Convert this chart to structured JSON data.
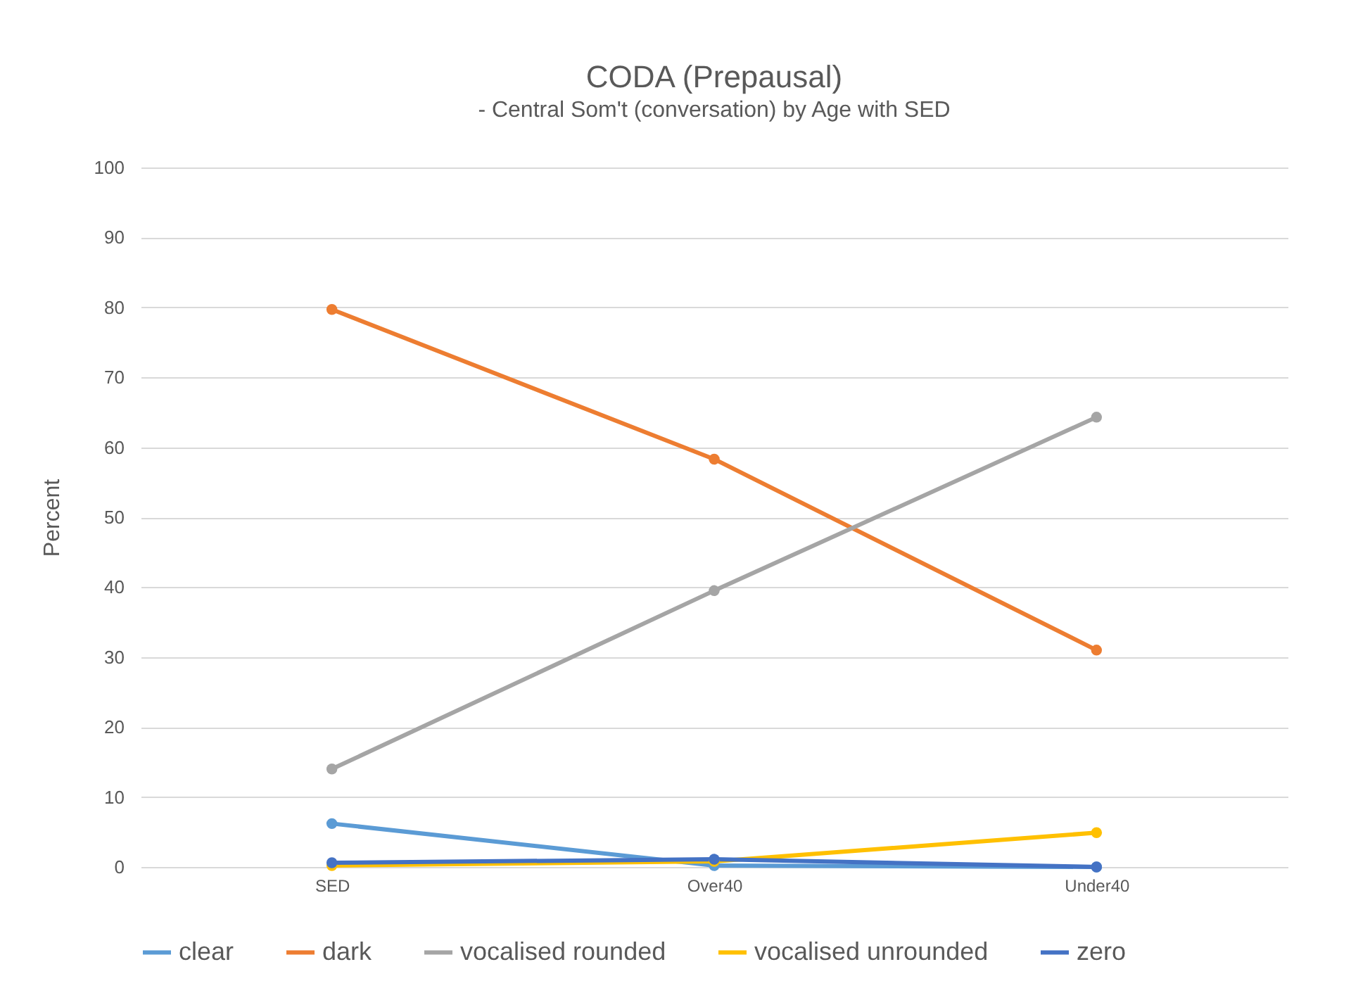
{
  "chart_data": {
    "type": "line",
    "title": "CODA (Prepausal)",
    "subtitle": "- Central Som't (conversation) by Age with SED",
    "ylabel": "Percent",
    "categories": [
      "SED",
      "Over40",
      "Under40"
    ],
    "series": [
      {
        "name": "clear",
        "color": "#5b9bd5",
        "values": [
          6.2,
          0.2,
          0
        ]
      },
      {
        "name": "dark",
        "color": "#ed7d31",
        "values": [
          79.7,
          58.3,
          31
        ]
      },
      {
        "name": "vocalised rounded",
        "color": "#a5a5a5",
        "values": [
          14,
          39.5,
          64.3
        ]
      },
      {
        "name": "vocalised unrounded",
        "color": "#ffc000",
        "values": [
          0.2,
          0.8,
          4.9
        ]
      },
      {
        "name": "zero",
        "color": "#4472c4",
        "values": [
          0.6,
          1.1,
          0
        ]
      }
    ],
    "ylim": [
      0,
      100
    ],
    "yticks": [
      0,
      10,
      20,
      30,
      40,
      50,
      60,
      70,
      80,
      90,
      100
    ],
    "grid": "y",
    "legend": "bottom",
    "marker": "circle",
    "line_style": "solid"
  }
}
